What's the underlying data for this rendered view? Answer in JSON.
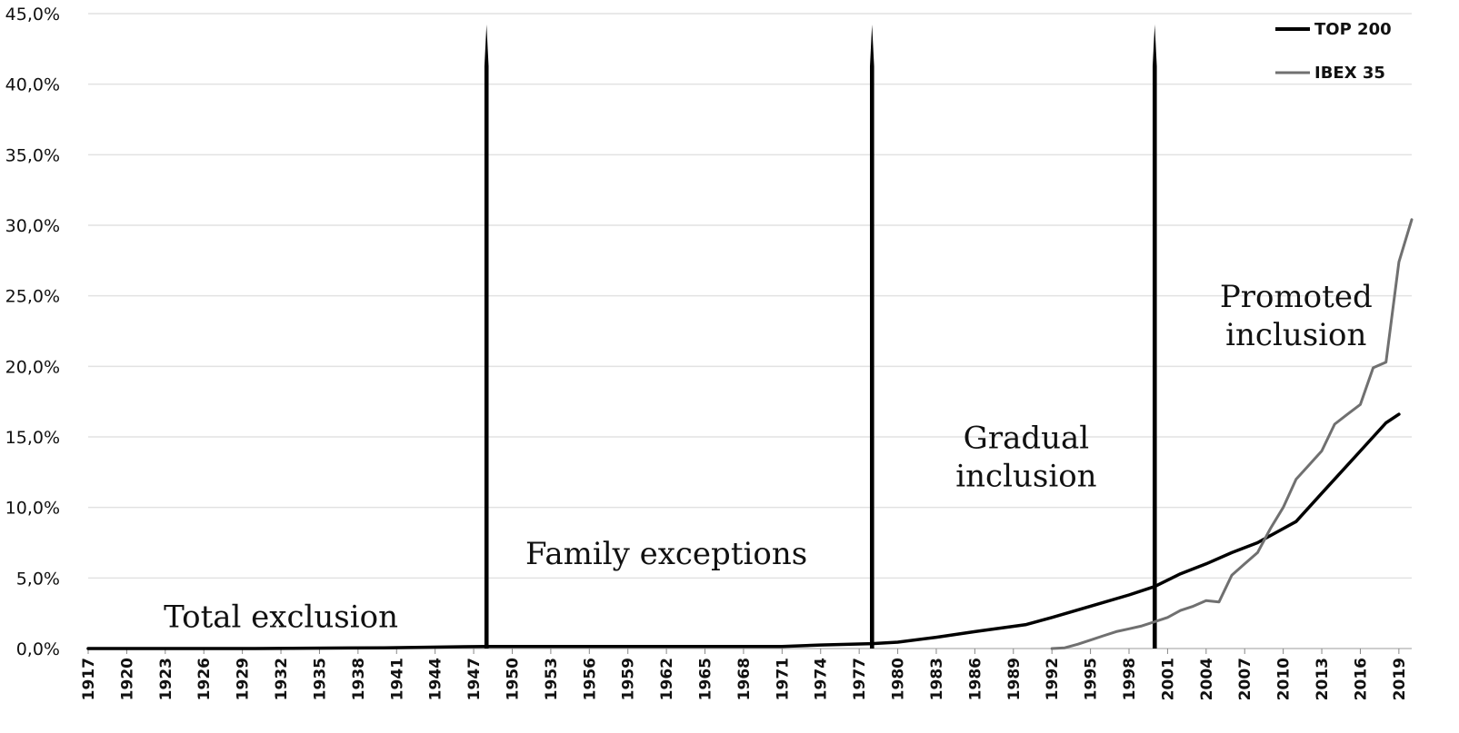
{
  "chart_data": {
    "type": "line",
    "title": "",
    "xlabel": "",
    "ylabel": "",
    "x_tick_labels": [
      "1917",
      "1920",
      "1923",
      "1926",
      "1929",
      "1932",
      "1935",
      "1938",
      "1941",
      "1944",
      "1947",
      "1950",
      "1953",
      "1956",
      "1959",
      "1962",
      "1965",
      "1968",
      "1971",
      "1974",
      "1977",
      "1980",
      "1983",
      "1986",
      "1989",
      "1992",
      "1995",
      "1998",
      "2001",
      "2004",
      "2007",
      "2010",
      "2013",
      "2016",
      "2019"
    ],
    "y_tick_labels": [
      "0,0%",
      "5,0%",
      "10,0%",
      "15,0%",
      "20,0%",
      "25,0%",
      "30,0%",
      "35,0%",
      "40,0%",
      "45,0%"
    ],
    "xlim": [
      1917,
      2020
    ],
    "ylim": [
      0,
      45
    ],
    "grid": "horizontal",
    "legend_position": "top-right",
    "series": [
      {
        "name": "TOP 200",
        "color": "#000000",
        "points": [
          [
            1917,
            0.0
          ],
          [
            1930,
            0.0
          ],
          [
            1940,
            0.05
          ],
          [
            1948,
            0.15
          ],
          [
            1960,
            0.15
          ],
          [
            1971,
            0.15
          ],
          [
            1974,
            0.25
          ],
          [
            1978,
            0.35
          ],
          [
            1980,
            0.45
          ],
          [
            1983,
            0.8
          ],
          [
            1986,
            1.2
          ],
          [
            1990,
            1.7
          ],
          [
            1992,
            2.2
          ],
          [
            1995,
            3.0
          ],
          [
            1998,
            3.8
          ],
          [
            2000,
            4.4
          ],
          [
            2002,
            5.3
          ],
          [
            2004,
            6.0
          ],
          [
            2006,
            6.8
          ],
          [
            2008,
            7.5
          ],
          [
            2009,
            8.0
          ],
          [
            2010,
            8.5
          ],
          [
            2011,
            9.0
          ],
          [
            2013,
            11.0
          ],
          [
            2016,
            14.0
          ],
          [
            2018,
            16.0
          ],
          [
            2019,
            16.6
          ]
        ]
      },
      {
        "name": "IBEX 35",
        "color": "#707070",
        "points": [
          [
            1992,
            0.0
          ],
          [
            1993,
            0.05
          ],
          [
            1994,
            0.3
          ],
          [
            1995,
            0.6
          ],
          [
            1996,
            0.9
          ],
          [
            1997,
            1.2
          ],
          [
            1998,
            1.4
          ],
          [
            1999,
            1.6
          ],
          [
            2000,
            1.9
          ],
          [
            2001,
            2.2
          ],
          [
            2002,
            2.7
          ],
          [
            2003,
            3.0
          ],
          [
            2004,
            3.4
          ],
          [
            2005,
            3.3
          ],
          [
            2006,
            5.2
          ],
          [
            2007,
            6.0
          ],
          [
            2008,
            6.8
          ],
          [
            2009,
            8.5
          ],
          [
            2010,
            10.0
          ],
          [
            2011,
            12.0
          ],
          [
            2012,
            13.0
          ],
          [
            2013,
            14.0
          ],
          [
            2014,
            15.9
          ],
          [
            2015,
            16.6
          ],
          [
            2016,
            17.3
          ],
          [
            2017,
            19.9
          ],
          [
            2018,
            20.3
          ],
          [
            2019,
            27.4
          ],
          [
            2020,
            30.4
          ]
        ]
      }
    ],
    "vertical_lines": [
      1948,
      1978,
      2000
    ],
    "annotations": [
      {
        "lines": [
          "Total exclusion"
        ],
        "x": 1932,
        "y": 1.5
      },
      {
        "lines": [
          "Family exceptions"
        ],
        "x": 1962,
        "y": 6.0
      },
      {
        "lines": [
          "Gradual",
          "inclusion"
        ],
        "x": 1990,
        "y": 11.5
      },
      {
        "lines": [
          "Promoted",
          "inclusion"
        ],
        "x": 2011,
        "y": 21.5
      }
    ]
  }
}
